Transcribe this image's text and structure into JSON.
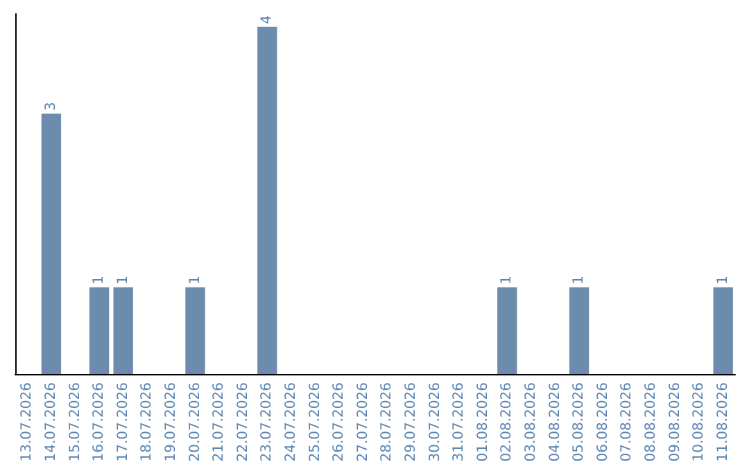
{
  "chart_data": {
    "type": "bar",
    "categories": [
      "13.07.2026",
      "14.07.2026",
      "15.07.2026",
      "16.07.2026",
      "17.07.2026",
      "18.07.2026",
      "19.07.2026",
      "20.07.2026",
      "21.07.2026",
      "22.07.2026",
      "23.07.2026",
      "24.07.2026",
      "25.07.2026",
      "26.07.2026",
      "27.07.2026",
      "28.07.2026",
      "29.07.2026",
      "30.07.2026",
      "31.07.2026",
      "01.08.2026",
      "02.08.2026",
      "03.08.2026",
      "04.08.2026",
      "05.08.2026",
      "06.08.2026",
      "07.08.2026",
      "08.08.2026",
      "09.08.2026",
      "10.08.2026",
      "11.08.2026"
    ],
    "values": [
      0,
      3,
      0,
      1,
      1,
      0,
      0,
      1,
      0,
      0,
      4,
      0,
      0,
      0,
      0,
      0,
      0,
      0,
      0,
      0,
      1,
      0,
      0,
      1,
      0,
      0,
      0,
      0,
      0,
      1
    ],
    "value_labels": [
      null,
      "3",
      null,
      "1",
      "1",
      null,
      null,
      "1",
      null,
      null,
      "4",
      null,
      null,
      null,
      null,
      null,
      null,
      null,
      null,
      null,
      "1",
      null,
      null,
      "1",
      null,
      null,
      null,
      null,
      null,
      "1"
    ],
    "color": "#6b8cad",
    "ylim": [
      0,
      4.15
    ],
    "tick_labels": "x"
  }
}
